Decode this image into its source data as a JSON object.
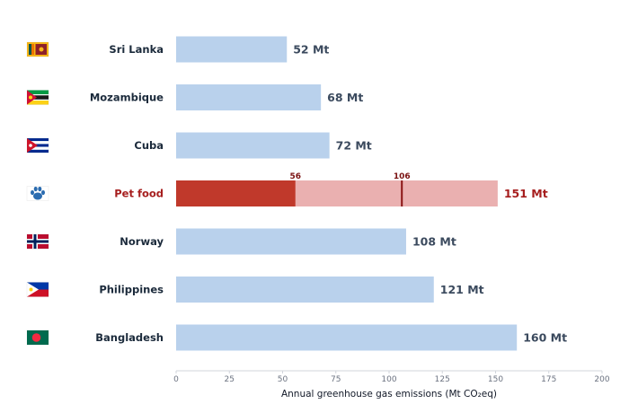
{
  "chart_data": {
    "type": "bar",
    "orientation": "horizontal",
    "title": "",
    "xlabel": "Annual greenhouse gas emissions (Mt CO₂eq)",
    "ylabel": "",
    "xlim": [
      0,
      200
    ],
    "xticks": [
      0,
      25,
      50,
      75,
      100,
      125,
      150,
      175,
      200
    ],
    "grid": false,
    "legend": "none",
    "categories": [
      "Sri Lanka",
      "Mozambique",
      "Cuba",
      "Pet food",
      "Norway",
      "Philippines",
      "Bangladesh"
    ],
    "values": [
      52,
      68,
      72,
      151,
      108,
      121,
      160
    ],
    "value_labels": [
      "52 Mt",
      "68 Mt",
      "72 Mt",
      "151 Mt",
      "108 Mt",
      "121 Mt",
      "160 Mt"
    ],
    "icons": [
      "sri-lanka-flag-icon",
      "mozambique-flag-icon",
      "cuba-flag-icon",
      "paw-print-icon",
      "norway-flag-icon",
      "philippines-flag-icon",
      "bangladesh-flag-icon"
    ],
    "highlight": {
      "category": "Pet food",
      "segment_value": 56,
      "segment_label": "56",
      "marker_value": 106,
      "marker_label": "106"
    },
    "colors": {
      "bar": "#b9d1ec",
      "highlight_dark": "#c0392b",
      "highlight_light": "#eab0b0",
      "marker": "#8b1414",
      "highlight_text": "#a61e1e",
      "label_text": "#1b2a3b",
      "value_text": "#3b4a5e",
      "axis": "#d1d5db"
    }
  }
}
